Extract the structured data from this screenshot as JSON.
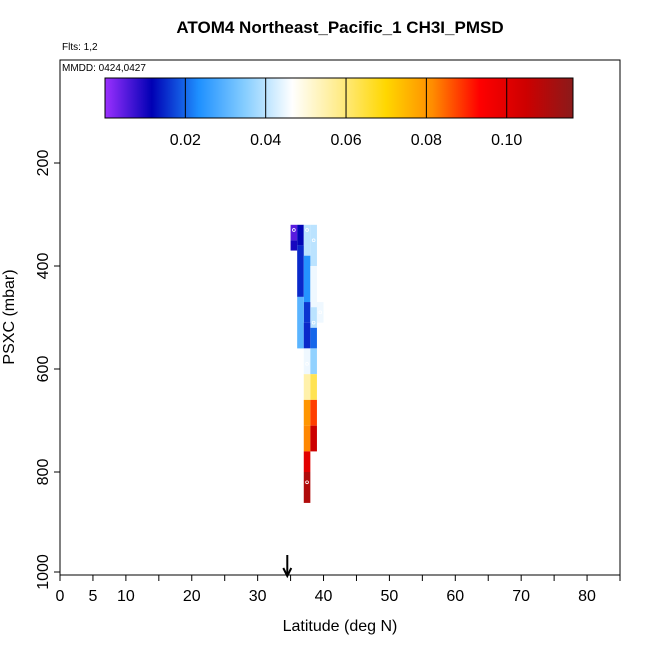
{
  "chart_data": {
    "type": "heatmap",
    "title": "ATOM4 Northeast_Pacific_1 CH3I_PMSD",
    "flights": "Flts: 1,2",
    "mmdd": "MMDD: 0424,0427",
    "xlabel": "Latitude (deg N)",
    "ylabel": "PSXC (mbar)",
    "xlim": [
      0,
      85
    ],
    "ylim": [
      1000,
      0
    ],
    "x_ticks": [
      0,
      5,
      10,
      20,
      30,
      40,
      50,
      60,
      70,
      80
    ],
    "x_minor_ticks": [
      15,
      25,
      35,
      45,
      55,
      65,
      75,
      85
    ],
    "y_ticks": [
      200,
      400,
      600,
      800,
      1000
    ],
    "marker_latitude": 34.5,
    "colorbar": {
      "min": 0.0,
      "max": 0.1165,
      "ticks": [
        0.02,
        0.04,
        0.06,
        0.08,
        0.1
      ],
      "tick_labels": [
        "0.02",
        "0.04",
        "0.06",
        "0.08",
        "0.10"
      ],
      "colors": [
        "#9b30ff",
        "#0000b4",
        "#1e90ff",
        "#87ceff",
        "#ffffff",
        "#ffec8b",
        "#ffd700",
        "#ff8c00",
        "#ff0000",
        "#cd0000",
        "#8b1a1a"
      ]
    },
    "cells": [
      {
        "lat": 35.5,
        "p0": 320,
        "p1": 350,
        "value": 0.005
      },
      {
        "lat": 35.5,
        "p0": 350,
        "p1": 370,
        "value": 0.01
      },
      {
        "lat": 36.5,
        "p0": 320,
        "p1": 360,
        "value": 0.012
      },
      {
        "lat": 37.5,
        "p0": 320,
        "p1": 380,
        "value": 0.04
      },
      {
        "lat": 38.5,
        "p0": 320,
        "p1": 400,
        "value": 0.04
      },
      {
        "lat": 36.5,
        "p0": 360,
        "p1": 460,
        "value": 0.015
      },
      {
        "lat": 37.5,
        "p0": 380,
        "p1": 470,
        "value": 0.024
      },
      {
        "lat": 38.5,
        "p0": 400,
        "p1": 480,
        "value": 0.045
      },
      {
        "lat": 37.5,
        "p0": 470,
        "p1": 510,
        "value": 0.016
      },
      {
        "lat": 38.5,
        "p0": 480,
        "p1": 520,
        "value": 0.04
      },
      {
        "lat": 39.5,
        "p0": 470,
        "p1": 510,
        "value": 0.045
      },
      {
        "lat": 36.5,
        "p0": 460,
        "p1": 560,
        "value": 0.03
      },
      {
        "lat": 37.5,
        "p0": 510,
        "p1": 560,
        "value": 0.015
      },
      {
        "lat": 38.5,
        "p0": 520,
        "p1": 560,
        "value": 0.02
      },
      {
        "lat": 37.5,
        "p0": 560,
        "p1": 610,
        "value": 0.045
      },
      {
        "lat": 38.5,
        "p0": 560,
        "p1": 610,
        "value": 0.036
      },
      {
        "lat": 37.5,
        "p0": 610,
        "p1": 660,
        "value": 0.055
      },
      {
        "lat": 38.5,
        "p0": 610,
        "p1": 660,
        "value": 0.063
      },
      {
        "lat": 37.5,
        "p0": 660,
        "p1": 710,
        "value": 0.08
      },
      {
        "lat": 38.5,
        "p0": 660,
        "p1": 710,
        "value": 0.088
      },
      {
        "lat": 37.5,
        "p0": 710,
        "p1": 760,
        "value": 0.082
      },
      {
        "lat": 38.5,
        "p0": 710,
        "p1": 760,
        "value": 0.105
      },
      {
        "lat": 37.5,
        "p0": 760,
        "p1": 800,
        "value": 0.1
      },
      {
        "lat": 37.5,
        "p0": 800,
        "p1": 860,
        "value": 0.11
      }
    ],
    "points": [
      {
        "lat": 35.5,
        "p": 330
      },
      {
        "lat": 37.5,
        "p": 330
      },
      {
        "lat": 38.5,
        "p": 350
      },
      {
        "lat": 39.5,
        "p": 490
      },
      {
        "lat": 38.5,
        "p": 510
      },
      {
        "lat": 37.5,
        "p": 590
      },
      {
        "lat": 37.5,
        "p": 820
      }
    ]
  }
}
